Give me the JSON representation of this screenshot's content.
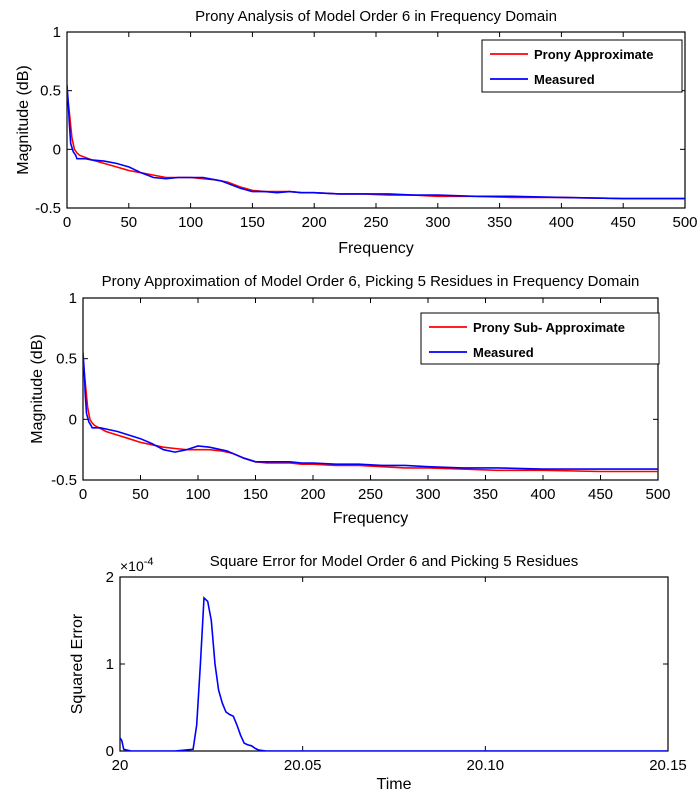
{
  "chart_data": [
    {
      "type": "line",
      "title": "Prony Analysis of Model Order 6 in Frequency Domain",
      "xlabel": "Frequency",
      "ylabel": "Magnitude (dB)",
      "xlim": [
        0,
        500
      ],
      "ylim": [
        -0.5,
        1
      ],
      "xticks": [
        "0",
        "50",
        "100",
        "150",
        "200",
        "250",
        "300",
        "350",
        "400",
        "450",
        "500"
      ],
      "yticks": [
        "-0.5",
        "0",
        "0.5",
        "1"
      ],
      "legend_position": "top-right",
      "grid": false,
      "series": [
        {
          "name": "Prony Approximate",
          "color": "#ff0000",
          "x": [
            0,
            2,
            4,
            6,
            8,
            10,
            20,
            30,
            40,
            50,
            60,
            70,
            80,
            90,
            100,
            110,
            120,
            130,
            140,
            150,
            160,
            170,
            180,
            190,
            200,
            220,
            240,
            260,
            280,
            300,
            330,
            360,
            400,
            450,
            500
          ],
          "y": [
            0.5,
            0.3,
            0.1,
            0.0,
            -0.03,
            -0.05,
            -0.09,
            -0.12,
            -0.15,
            -0.18,
            -0.2,
            -0.22,
            -0.24,
            -0.24,
            -0.24,
            -0.25,
            -0.26,
            -0.28,
            -0.32,
            -0.35,
            -0.36,
            -0.36,
            -0.36,
            -0.37,
            -0.37,
            -0.38,
            -0.38,
            -0.39,
            -0.39,
            -0.4,
            -0.4,
            -0.41,
            -0.41,
            -0.42,
            -0.42
          ]
        },
        {
          "name": "Measured",
          "color": "#0000ff",
          "x": [
            0,
            1,
            2,
            3,
            5,
            7,
            8,
            10,
            15,
            20,
            30,
            40,
            50,
            60,
            70,
            80,
            90,
            100,
            110,
            115,
            120,
            125,
            130,
            140,
            150,
            160,
            170,
            180,
            190,
            200,
            220,
            240,
            260,
            280,
            300,
            330,
            360,
            400,
            450,
            500
          ],
          "y": [
            0.55,
            0.4,
            0.2,
            0.05,
            -0.02,
            -0.05,
            -0.08,
            -0.08,
            -0.08,
            -0.09,
            -0.1,
            -0.12,
            -0.15,
            -0.2,
            -0.24,
            -0.25,
            -0.24,
            -0.24,
            -0.24,
            -0.25,
            -0.26,
            -0.27,
            -0.29,
            -0.33,
            -0.36,
            -0.36,
            -0.37,
            -0.36,
            -0.37,
            -0.37,
            -0.38,
            -0.38,
            -0.38,
            -0.39,
            -0.39,
            -0.4,
            -0.4,
            -0.41,
            -0.42,
            -0.42
          ]
        }
      ]
    },
    {
      "type": "line",
      "title": "Prony Approximation of Model Order 6, Picking 5 Residues in Frequency Domain",
      "xlabel": "Frequency",
      "ylabel": "Magnitude (dB)",
      "xlim": [
        0,
        500
      ],
      "ylim": [
        -0.5,
        1
      ],
      "xticks": [
        "0",
        "50",
        "100",
        "150",
        "200",
        "250",
        "300",
        "350",
        "400",
        "450",
        "500"
      ],
      "yticks": [
        "-0.5",
        "0",
        "0.5",
        "1"
      ],
      "legend_position": "top-right",
      "grid": false,
      "series": [
        {
          "name": "Prony Sub- Approximate",
          "color": "#ff0000",
          "x": [
            0,
            2,
            4,
            6,
            8,
            10,
            20,
            30,
            40,
            50,
            60,
            70,
            80,
            90,
            100,
            110,
            120,
            130,
            140,
            150,
            160,
            170,
            180,
            190,
            200,
            220,
            240,
            260,
            280,
            300,
            330,
            360,
            400,
            450,
            500
          ],
          "y": [
            0.5,
            0.3,
            0.1,
            0.0,
            -0.03,
            -0.05,
            -0.1,
            -0.13,
            -0.16,
            -0.19,
            -0.21,
            -0.23,
            -0.24,
            -0.25,
            -0.25,
            -0.25,
            -0.26,
            -0.28,
            -0.32,
            -0.35,
            -0.36,
            -0.36,
            -0.36,
            -0.37,
            -0.37,
            -0.38,
            -0.38,
            -0.39,
            -0.4,
            -0.4,
            -0.41,
            -0.42,
            -0.42,
            -0.43,
            -0.43
          ]
        },
        {
          "name": "Measured",
          "color": "#0000ff",
          "x": [
            0,
            1,
            2,
            3,
            5,
            7,
            8,
            10,
            15,
            20,
            30,
            40,
            50,
            60,
            70,
            80,
            90,
            100,
            110,
            120,
            125,
            130,
            140,
            150,
            160,
            170,
            180,
            190,
            200,
            220,
            240,
            260,
            280,
            300,
            330,
            360,
            400,
            450,
            500
          ],
          "y": [
            0.55,
            0.4,
            0.2,
            0.05,
            -0.02,
            -0.05,
            -0.07,
            -0.07,
            -0.07,
            -0.08,
            -0.1,
            -0.13,
            -0.16,
            -0.2,
            -0.25,
            -0.27,
            -0.25,
            -0.22,
            -0.23,
            -0.25,
            -0.26,
            -0.28,
            -0.32,
            -0.35,
            -0.35,
            -0.35,
            -0.35,
            -0.36,
            -0.36,
            -0.37,
            -0.37,
            -0.38,
            -0.38,
            -0.39,
            -0.4,
            -0.4,
            -0.41,
            -0.41,
            -0.41
          ]
        }
      ]
    },
    {
      "type": "line",
      "title": "Square Error for Model Order 6 and Picking 5 Residues",
      "xlabel": "Time",
      "ylabel": "Squared Error",
      "xlim": [
        20,
        20.15
      ],
      "ylim": [
        0,
        2
      ],
      "xticks": [
        "20",
        "20.05",
        "20.10",
        "20.15"
      ],
      "yticks": [
        "0",
        "1",
        "2"
      ],
      "y_multiplier": "×10",
      "y_multiplier_exp": "-4",
      "grid": false,
      "series": [
        {
          "color": "#0000ff",
          "x": [
            20.0,
            20.0005,
            20.001,
            20.003,
            20.006,
            20.01,
            20.015,
            20.02,
            20.021,
            20.022,
            20.023,
            20.024,
            20.025,
            20.026,
            20.027,
            20.028,
            20.029,
            20.03,
            20.031,
            20.032,
            20.033,
            20.034,
            20.035,
            20.036,
            20.037,
            20.038,
            20.04,
            20.045,
            20.05,
            20.1,
            20.15
          ],
          "y": [
            0.15,
            0.12,
            0.02,
            0.0,
            0.0,
            0.0,
            0.0,
            0.02,
            0.3,
            1.0,
            1.76,
            1.72,
            1.5,
            1.0,
            0.7,
            0.55,
            0.45,
            0.42,
            0.4,
            0.3,
            0.18,
            0.09,
            0.07,
            0.06,
            0.03,
            0.01,
            0.0,
            0.0,
            0.0,
            0.0,
            0.0
          ]
        }
      ]
    }
  ]
}
